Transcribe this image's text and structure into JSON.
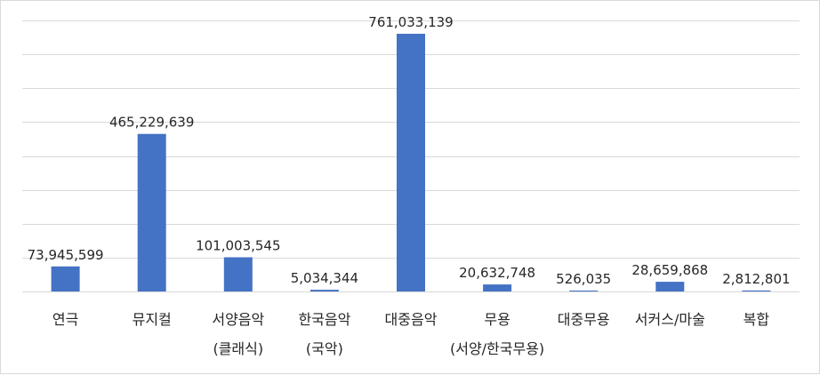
{
  "chart_data": {
    "type": "bar",
    "title": "",
    "xlabel": "",
    "ylabel": "",
    "categories": [
      [
        "연극"
      ],
      [
        "뮤지컬"
      ],
      [
        "서양음악",
        "(클래식)"
      ],
      [
        "한국음악",
        "(국악)"
      ],
      [
        "대중음악"
      ],
      [
        "무용",
        "(서양/한국무용)"
      ],
      [
        "대중무용"
      ],
      [
        "서커스/마술"
      ],
      [
        "복합"
      ]
    ],
    "values": [
      73945599,
      465229639,
      101003545,
      5034344,
      761033139,
      20632748,
      526035,
      28659868,
      2812801
    ],
    "data_labels": [
      "73,945,599",
      "465,229,639",
      "101,003,545",
      "5,034,344",
      "761,033,139",
      "20,632,748",
      "526,035",
      "28,659,868",
      "2,812,801"
    ],
    "ylim": [
      0,
      800000000
    ],
    "ytick_step": 100000000,
    "grid": true,
    "legend": "none",
    "bar_color": "#4472c4"
  }
}
